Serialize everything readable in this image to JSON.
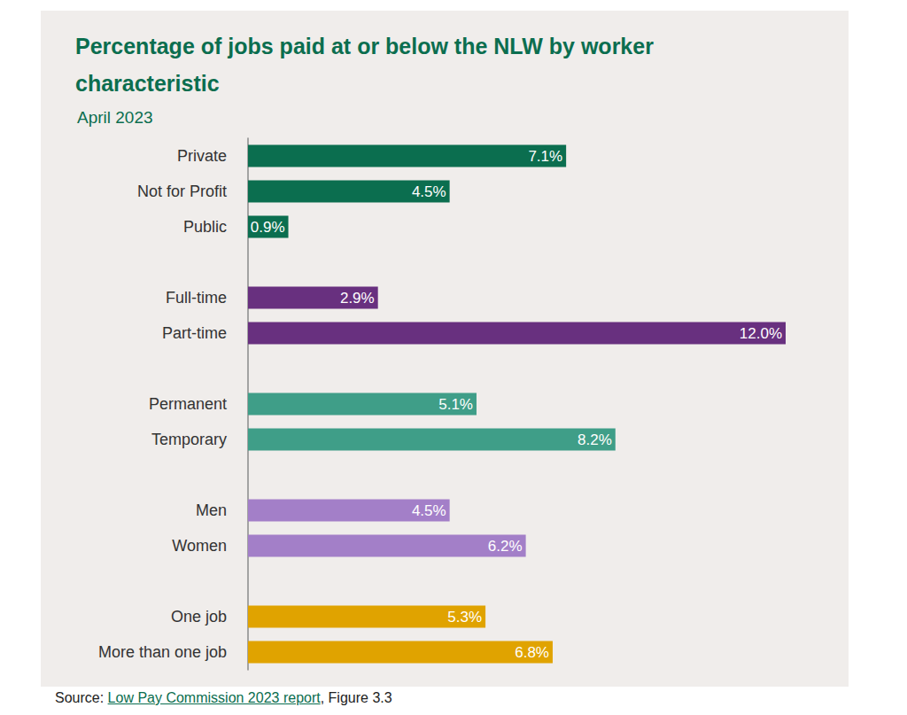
{
  "chart_data": {
    "type": "bar",
    "orientation": "horizontal",
    "title": "Percentage of jobs paid at or below the NLW by worker characteristic",
    "subtitle": "April 2023",
    "categories": [
      "Private",
      "Not for Profit",
      "Public",
      null,
      "Full-time",
      "Part-time",
      null,
      "Permanent",
      "Temporary",
      null,
      "Men",
      "Women",
      null,
      "One job",
      "More than one job"
    ],
    "values": [
      7.1,
      4.5,
      0.9,
      null,
      2.9,
      12.0,
      null,
      5.1,
      8.2,
      null,
      4.5,
      6.2,
      null,
      5.3,
      6.8
    ],
    "value_labels": [
      "7.1%",
      "4.5%",
      "0.9%",
      null,
      "2.9%",
      "12.0%",
      null,
      "5.1%",
      "8.2%",
      null,
      "4.5%",
      "6.2%",
      null,
      "5.3%",
      "6.8%"
    ],
    "colors": [
      "#0b6e4f",
      "#0b6e4f",
      "#0b6e4f",
      null,
      "#68307f",
      "#68307f",
      null,
      "#3f9e88",
      "#3f9e88",
      null,
      "#a37fc8",
      "#a37fc8",
      null,
      "#e0a300",
      "#e0a300"
    ],
    "xlim": [
      0,
      12
    ],
    "tick_labels": false,
    "grid": false,
    "data_labels": true,
    "source": {
      "prefix": "Source: ",
      "link": "Low Pay Commission 2023 report",
      "suffix": ", Figure 3.3"
    }
  }
}
